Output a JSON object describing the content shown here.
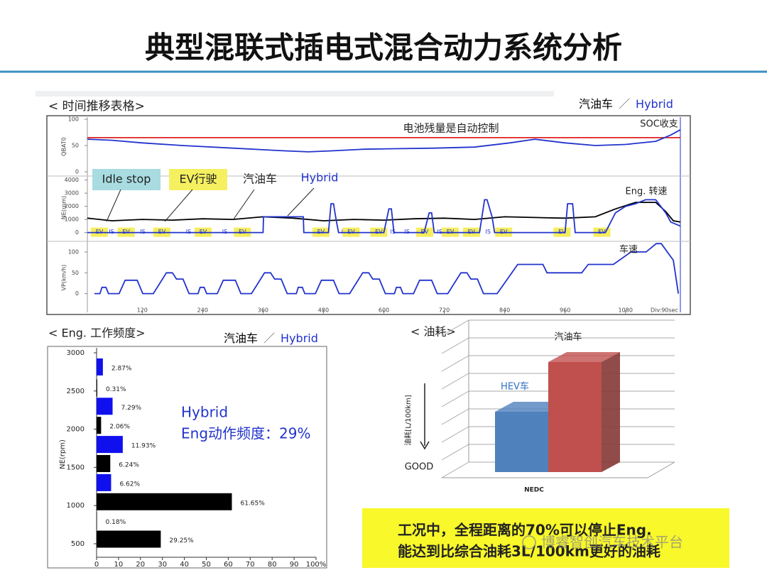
{
  "title": "典型混联式插电式混合动力系统分析",
  "chart_data": [
    {
      "type": "line",
      "heading": "< 时间推移表格>",
      "legend": [
        {
          "name": "汽油车",
          "color": "#000000"
        },
        {
          "name": "Hybrid",
          "color": "#2233cc"
        }
      ],
      "legend_separator": "／",
      "note": "电池残量是自动控制",
      "xlim": [
        11,
        1189
      ],
      "xticks": [
        120,
        240,
        360,
        480,
        600,
        720,
        840,
        960,
        1080
      ],
      "x_note": "Div:90sec",
      "panels": [
        {
          "ylabel": "QBAT0",
          "ylim": [
            -8,
            104
          ],
          "yticks": [
            0,
            50,
            100
          ],
          "label": "SOC收支",
          "series": [
            {
              "color": "#e02020",
              "x": [
                11,
                1189
              ],
              "values": [
                65,
                65
              ]
            },
            {
              "color": "#2233cc",
              "x": [
                11,
                60,
                120,
                200,
                300,
                400,
                450,
                500,
                560,
                620,
                700,
                780,
                850,
                900,
                960,
                1020,
                1080,
                1140,
                1170,
                1189
              ],
              "values": [
                62,
                60,
                55,
                50,
                45,
                40,
                38,
                40,
                43,
                44,
                45,
                47,
                55,
                62,
                55,
                50,
                52,
                58,
                70,
                80
              ]
            }
          ]
        },
        {
          "ylabel": "NE(rpm)",
          "ylim": [
            -400,
            4200
          ],
          "yticks": [
            0,
            1000,
            2000,
            3000,
            4000
          ],
          "label": "Eng. 转速",
          "series": [
            {
              "color": "#000000",
              "x": [
                11,
                60,
                120,
                180,
                240,
                300,
                360,
                420,
                480,
                540,
                600,
                660,
                720,
                780,
                840,
                900,
                960,
                1020,
                1060,
                1100,
                1140,
                1160,
                1175,
                1189
              ],
              "values": [
                1100,
                900,
                1000,
                950,
                1050,
                1000,
                1200,
                1100,
                900,
                1000,
                950,
                1050,
                1100,
                1000,
                1200,
                1150,
                1100,
                1200,
                1800,
                2300,
                2300,
                1600,
                900,
                800
              ]
            },
            {
              "color": "#2233cc",
              "x": [
                11,
                25,
                26,
                360,
                361,
                440,
                441,
                490,
                495,
                500,
                505,
                510,
                600,
                610,
                615,
                620,
                680,
                690,
                695,
                700,
                790,
                800,
                805,
                815,
                820,
                830,
                880,
                900,
                920,
                960,
                965,
                975,
                980,
                1040,
                1060,
                1080,
                1100,
                1120,
                1140,
                1160,
                1170,
                1189
              ],
              "values": [
                0,
                0,
                0,
                0,
                1200,
                1200,
                0,
                0,
                2200,
                2200,
                1000,
                0,
                0,
                1800,
                1800,
                0,
                0,
                1500,
                1500,
                0,
                0,
                2500,
                2500,
                1200,
                0,
                0,
                0,
                0,
                0,
                0,
                2200,
                2200,
                0,
                0,
                1500,
                2000,
                2200,
                2500,
                2500,
                1500,
                800,
                500
              ]
            }
          ],
          "modes": {
            "labels": [
              "EV",
              "IS",
              "EV",
              "IS",
              "EV",
              "IS",
              "EV",
              "IS",
              "EV",
              "EV",
              "IS",
              "EV",
              "EV",
              "IS",
              "IS",
              "EV",
              "IS",
              "EV",
              "EV",
              "IS",
              "EV",
              "EV",
              "EV"
            ],
            "x": [
              35,
              59,
              88,
              121,
              159,
              212,
              241,
              284,
              319,
              475,
              521,
              535,
              590,
              618,
              646,
              681,
              711,
              732,
              774,
              807,
              838,
              954,
              1033
            ]
          },
          "callouts": [
            "Idle stop",
            "EV行驶",
            "汽油车",
            "Hybrid"
          ]
        },
        {
          "ylabel": "VP(km/h)",
          "ylim": [
            -45,
            122
          ],
          "yticks": [
            0,
            50,
            100
          ],
          "label": "车速",
          "series": [
            {
              "color": "#2233cc",
              "x": [
                25,
                36,
                40,
                48,
                53,
                74,
                86,
                110,
                121,
                142,
                168,
                180,
                188,
                201,
                213,
                220,
                231,
                235,
                243,
                248,
                269,
                281,
                305,
                316,
                337,
                363,
                375,
                383,
                396,
                408,
                415,
                426,
                430,
                438,
                443,
                464,
                476,
                500,
                511,
                532,
                558,
                570,
                578,
                591,
                603,
                610,
                621,
                625,
                633,
                638,
                659,
                671,
                695,
                706,
                727,
                753,
                765,
                773,
                786,
                798,
                825,
                866,
                916,
                924,
                993,
                1006,
                1056,
                1091,
                1121,
                1141,
                1151,
                1175,
                1185
              ],
              "values": [
                0,
                0,
                15,
                15,
                0,
                0,
                32,
                32,
                0,
                0,
                50,
                50,
                35,
                35,
                0,
                0,
                0,
                15,
                15,
                0,
                0,
                32,
                32,
                0,
                0,
                50,
                50,
                35,
                35,
                0,
                0,
                0,
                15,
                15,
                0,
                0,
                32,
                32,
                0,
                0,
                50,
                50,
                35,
                35,
                0,
                0,
                0,
                15,
                15,
                0,
                0,
                32,
                32,
                0,
                0,
                50,
                50,
                35,
                35,
                0,
                0,
                70,
                70,
                50,
                50,
                70,
                70,
                100,
                100,
                120,
                120,
                80,
                0
              ]
            }
          ]
        }
      ]
    },
    {
      "type": "bar",
      "heading": "< Eng. 工作频度>",
      "legend": [
        {
          "name": "汽油车",
          "color": "#000000"
        },
        {
          "name": "Hybrid",
          "color": "#2233cc"
        }
      ],
      "legend_separator": "／",
      "ylabel": "NE(rpm)",
      "ylim": [
        323,
        3065
      ],
      "yticks": [
        500,
        1000,
        1500,
        2000,
        2500,
        3000
      ],
      "xlim": [
        0,
        100
      ],
      "xticks": [
        0,
        10,
        20,
        30,
        40,
        50,
        60,
        70,
        80,
        90,
        {
          "value": 100,
          "label": "100%"
        }
      ],
      "series": [
        {
          "name": "Hybrid",
          "color": "#1010ee",
          "y": [
            2815,
            2300,
            1800,
            1300
          ],
          "values": [
            2.87,
            7.29,
            11.93,
            6.62
          ],
          "value_labels": [
            "2.87%",
            "7.29%",
            "11.93%",
            "6.62%"
          ]
        },
        {
          "name": "汽油车",
          "color": "#000000",
          "y": [
            2540,
            2050,
            1550,
            1050,
            800,
            560
          ],
          "values": [
            0.31,
            2.06,
            6.24,
            61.65,
            0.18,
            29.25
          ],
          "value_labels": [
            "0.31%",
            "2.06%",
            "6.24%",
            "61.65%",
            "0.18%",
            "29.25%"
          ]
        }
      ],
      "annotation": [
        "Hybrid",
        "Eng动作频度：29%"
      ]
    },
    {
      "type": "bar3d",
      "heading": "< 油耗>",
      "categories": [
        "HEV车",
        "汽油车"
      ],
      "values": [
        3.4,
        6.2
      ],
      "colors": [
        "#4f81bd",
        "#c0504d"
      ],
      "ylim": [
        0,
        8
      ],
      "ylabel": "油耗[L/100km]",
      "good_label": "GOOD",
      "xlabel": "NEDC"
    }
  ],
  "summary": [
    "工况中，全程距离的70%可以停止Eng.",
    "能达到比综合油耗3L/100km更好的油耗"
  ],
  "watermark": "博睿智创汽车技术平台"
}
